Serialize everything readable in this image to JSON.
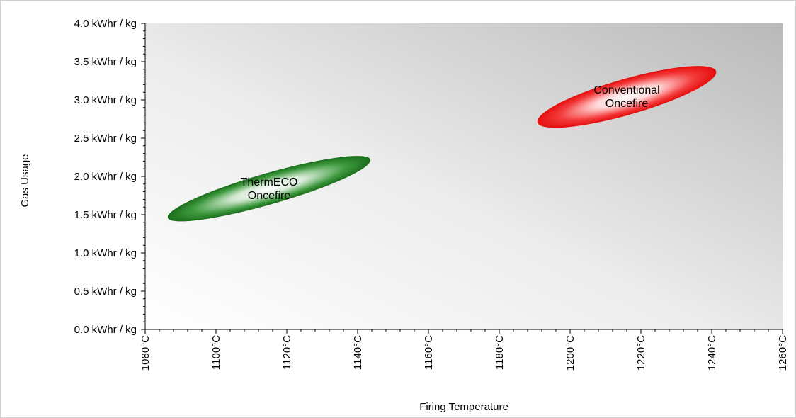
{
  "chart_data": {
    "type": "scatter",
    "title": "",
    "xlabel": "Firing Temperature",
    "ylabel": "Gas Usage",
    "xlim": [
      1080,
      1260
    ],
    "ylim": [
      0,
      4
    ],
    "x_ticks": [
      "1080°C",
      "1100°C",
      "1120°C",
      "1140°C",
      "1160°C",
      "1180°C",
      "1200°C",
      "1220°C",
      "1240°C",
      "1260°C"
    ],
    "y_ticks": [
      "0.0 kWhr / kg",
      "0.5 kWhr / kg",
      "1.0 kWhr / kg",
      "1.5 kWhr / kg",
      "2.0 kWhr / kg",
      "2.5 kWhr / kg",
      "3.0 kWhr / kg",
      "3.5 kWhr / kg",
      "4.0 kWhr / kg"
    ],
    "grid": false,
    "legend": "none",
    "series": [
      {
        "label_lines": [
          "ThermECO",
          "Oncefire"
        ],
        "color": "#1f7a1f",
        "x_range": [
          1086,
          1145
        ],
        "y_range": [
          1.4,
          2.3
        ],
        "center": [
          1115,
          1.84
        ]
      },
      {
        "label_lines": [
          "Conventional",
          "Oncefire"
        ],
        "color": "#ee1111",
        "x_range": [
          1190,
          1242
        ],
        "y_range": [
          2.5,
          3.62
        ],
        "center": [
          1216,
          3.04
        ]
      }
    ]
  }
}
